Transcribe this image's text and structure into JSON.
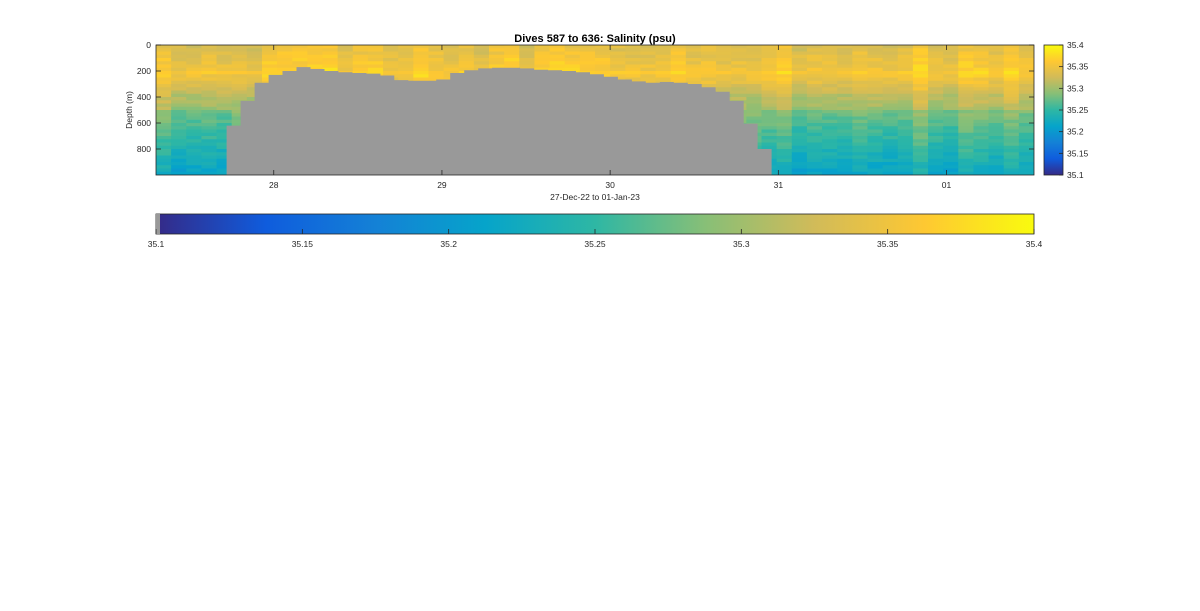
{
  "chart_data": {
    "type": "heatmap",
    "title": "Dives 587 to 636: Salinity (psu)",
    "xlabel": "27-Dec-22 to 01-Jan-23",
    "ylabel": "Depth (m)",
    "x_tick_labels": [
      "28",
      "29",
      "30",
      "31",
      "01"
    ],
    "x_tick_positions_days": [
      1,
      2,
      3,
      4,
      5
    ],
    "x_range_days": [
      0.3,
      5.52
    ],
    "y_ticks": [
      0,
      200,
      400,
      600,
      800
    ],
    "y_range": [
      0,
      1000
    ],
    "y_reversed": true,
    "color_range": [
      35.1,
      35.4
    ],
    "colorbar_ticks": [
      "35.1",
      "35.15",
      "35.2",
      "35.25",
      "35.3",
      "35.35",
      "35.4"
    ],
    "colormap": [
      "#352a87",
      "#0f5cdd",
      "#1481d6",
      "#06a4ca",
      "#2eb7a4",
      "#87bf77",
      "#d1bb59",
      "#fec832",
      "#f9fb0e"
    ],
    "no_data_color": "#999999",
    "dives": [
      "587",
      "636"
    ],
    "bottom_depth_m": [
      620,
      430,
      290,
      230,
      200,
      170,
      185,
      200,
      210,
      215,
      220,
      235,
      270,
      275,
      275,
      265,
      215,
      195,
      180,
      175,
      175,
      180,
      190,
      195,
      200,
      210,
      225,
      245,
      265,
      280,
      290,
      285,
      290,
      300,
      325,
      360,
      430,
      605,
      800
    ],
    "bottom_start_day": 0.72,
    "bottom_end_day": 3.96,
    "surface_salinity": 35.34,
    "max_salinity_layer_depth_m": [
      200,
      400
    ],
    "deep_salinity": 35.24
  }
}
